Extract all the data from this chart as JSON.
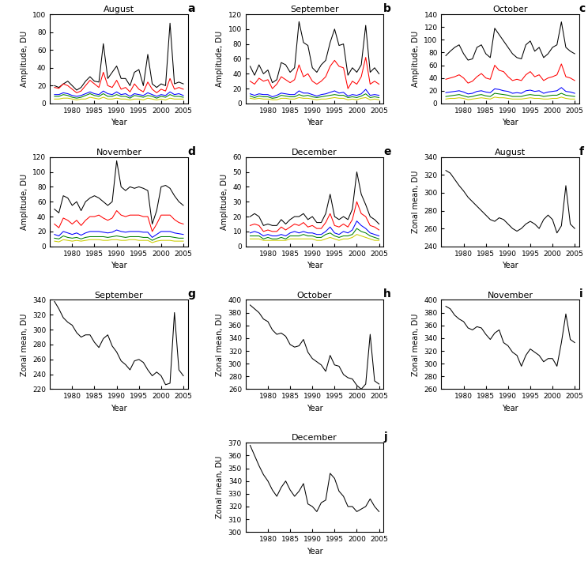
{
  "years": [
    1976,
    1977,
    1978,
    1979,
    1980,
    1981,
    1982,
    1983,
    1984,
    1985,
    1986,
    1987,
    1988,
    1989,
    1990,
    1991,
    1992,
    1993,
    1994,
    1995,
    1996,
    1997,
    1998,
    1999,
    2000,
    2001,
    2002,
    2003,
    2004,
    2005
  ],
  "amp_aug_wn1": [
    20,
    18,
    22,
    25,
    20,
    15,
    18,
    25,
    30,
    25,
    24,
    67,
    28,
    35,
    42,
    28,
    28,
    20,
    35,
    38,
    20,
    55,
    22,
    18,
    22,
    20,
    90,
    22,
    24,
    22
  ],
  "amp_aug_wn2": [
    18,
    17,
    22,
    20,
    16,
    12,
    14,
    20,
    26,
    22,
    18,
    35,
    20,
    18,
    26,
    16,
    18,
    13,
    22,
    16,
    13,
    24,
    16,
    12,
    16,
    14,
    28,
    16,
    18,
    16
  ],
  "amp_aug_wn3": [
    10,
    10,
    12,
    11,
    9,
    8,
    9,
    11,
    13,
    11,
    10,
    14,
    11,
    10,
    13,
    10,
    11,
    8,
    11,
    10,
    9,
    12,
    10,
    8,
    10,
    9,
    13,
    10,
    11,
    9
  ],
  "amp_aug_wn4": [
    8,
    8,
    10,
    9,
    7,
    6,
    7,
    9,
    11,
    9,
    8,
    11,
    8,
    8,
    10,
    8,
    8,
    6,
    9,
    8,
    7,
    9,
    8,
    6,
    8,
    7,
    10,
    8,
    8,
    7
  ],
  "amp_aug_wn5": [
    5,
    5,
    6,
    6,
    5,
    4,
    5,
    5,
    7,
    6,
    5,
    7,
    5,
    5,
    6,
    5,
    5,
    4,
    5,
    5,
    4,
    6,
    5,
    4,
    5,
    4,
    6,
    5,
    5,
    5
  ],
  "amp_sep_wn1": [
    50,
    38,
    52,
    40,
    45,
    28,
    32,
    55,
    52,
    42,
    48,
    110,
    82,
    78,
    48,
    42,
    52,
    58,
    82,
    100,
    78,
    80,
    38,
    48,
    42,
    52,
    105,
    42,
    48,
    40
  ],
  "amp_sep_wn2": [
    30,
    26,
    34,
    30,
    32,
    20,
    26,
    36,
    32,
    28,
    32,
    52,
    36,
    40,
    30,
    26,
    30,
    36,
    50,
    58,
    50,
    48,
    20,
    30,
    26,
    36,
    62,
    26,
    30,
    26
  ],
  "amp_sep_wn3": [
    13,
    11,
    13,
    12,
    12,
    9,
    11,
    14,
    13,
    12,
    12,
    17,
    14,
    14,
    12,
    10,
    12,
    13,
    15,
    17,
    14,
    15,
    10,
    12,
    11,
    13,
    19,
    11,
    12,
    11
  ],
  "amp_sep_wn4": [
    10,
    8,
    10,
    9,
    9,
    7,
    8,
    11,
    10,
    9,
    9,
    12,
    10,
    11,
    9,
    8,
    9,
    10,
    11,
    12,
    11,
    11,
    8,
    9,
    8,
    10,
    13,
    8,
    9,
    8
  ],
  "amp_sep_wn5": [
    7,
    6,
    7,
    6,
    6,
    5,
    5,
    7,
    7,
    6,
    6,
    8,
    7,
    7,
    6,
    5,
    6,
    6,
    7,
    8,
    7,
    7,
    5,
    6,
    5,
    7,
    8,
    5,
    6,
    5
  ],
  "amp_oct_wn1": [
    75,
    82,
    88,
    92,
    78,
    68,
    70,
    88,
    92,
    78,
    72,
    118,
    108,
    98,
    88,
    78,
    72,
    70,
    92,
    98,
    82,
    88,
    72,
    78,
    88,
    92,
    128,
    88,
    82,
    78
  ],
  "amp_oct_wn2": [
    38,
    40,
    42,
    45,
    40,
    32,
    35,
    42,
    47,
    40,
    38,
    60,
    52,
    50,
    42,
    36,
    38,
    36,
    45,
    50,
    42,
    45,
    36,
    40,
    42,
    45,
    62,
    42,
    40,
    36
  ],
  "amp_oct_wn3": [
    17,
    18,
    19,
    20,
    18,
    15,
    16,
    19,
    20,
    18,
    17,
    23,
    22,
    20,
    19,
    16,
    17,
    16,
    20,
    21,
    19,
    20,
    16,
    18,
    19,
    20,
    25,
    19,
    18,
    16
  ],
  "amp_oct_wn4": [
    11,
    12,
    13,
    14,
    12,
    10,
    11,
    13,
    14,
    12,
    11,
    16,
    15,
    14,
    13,
    11,
    11,
    11,
    13,
    14,
    13,
    13,
    11,
    12,
    13,
    13,
    16,
    13,
    12,
    11
  ],
  "amp_oct_wn5": [
    7,
    8,
    8,
    9,
    8,
    6,
    7,
    8,
    9,
    8,
    7,
    10,
    9,
    9,
    8,
    7,
    7,
    7,
    8,
    9,
    8,
    8,
    7,
    7,
    8,
    8,
    10,
    8,
    7,
    7
  ],
  "amp_nov_wn1": [
    50,
    45,
    68,
    65,
    55,
    60,
    48,
    60,
    65,
    68,
    65,
    60,
    55,
    60,
    115,
    80,
    75,
    80,
    78,
    80,
    78,
    75,
    30,
    48,
    80,
    82,
    78,
    68,
    60,
    55
  ],
  "amp_nov_wn2": [
    30,
    25,
    38,
    35,
    30,
    35,
    28,
    35,
    40,
    40,
    42,
    38,
    35,
    38,
    48,
    42,
    40,
    42,
    42,
    42,
    40,
    40,
    20,
    30,
    42,
    42,
    42,
    36,
    32,
    30
  ],
  "amp_nov_wn3": [
    16,
    14,
    20,
    18,
    16,
    18,
    15,
    18,
    20,
    20,
    20,
    19,
    18,
    19,
    22,
    20,
    19,
    20,
    20,
    20,
    19,
    19,
    12,
    16,
    20,
    20,
    20,
    18,
    17,
    16
  ],
  "amp_nov_wn4": [
    11,
    10,
    14,
    12,
    11,
    12,
    10,
    12,
    13,
    13,
    13,
    13,
    12,
    13,
    14,
    13,
    12,
    13,
    13,
    13,
    12,
    12,
    8,
    11,
    13,
    13,
    13,
    12,
    11,
    11
  ],
  "amp_nov_wn5": [
    7,
    6,
    9,
    8,
    7,
    8,
    7,
    8,
    9,
    9,
    9,
    8,
    8,
    9,
    9,
    8,
    8,
    9,
    9,
    8,
    8,
    8,
    5,
    7,
    8,
    8,
    8,
    7,
    7,
    7
  ],
  "amp_dec_wn1": [
    20,
    22,
    20,
    14,
    15,
    14,
    14,
    18,
    15,
    18,
    20,
    20,
    22,
    18,
    20,
    16,
    16,
    22,
    35,
    20,
    18,
    20,
    18,
    25,
    50,
    35,
    28,
    20,
    18,
    15
  ],
  "amp_dec_wn2": [
    14,
    15,
    14,
    10,
    11,
    10,
    10,
    13,
    11,
    13,
    15,
    14,
    16,
    13,
    14,
    12,
    12,
    16,
    22,
    14,
    13,
    15,
    13,
    18,
    30,
    22,
    20,
    14,
    13,
    11
  ],
  "amp_dec_wn3": [
    9,
    10,
    9,
    7,
    8,
    7,
    7,
    8,
    7,
    9,
    10,
    9,
    10,
    9,
    9,
    8,
    8,
    10,
    13,
    9,
    8,
    10,
    9,
    11,
    17,
    14,
    12,
    9,
    8,
    7
  ],
  "amp_dec_wn4": [
    7,
    7,
    7,
    5,
    6,
    5,
    5,
    6,
    5,
    7,
    7,
    7,
    8,
    7,
    7,
    6,
    6,
    8,
    9,
    7,
    6,
    7,
    7,
    8,
    12,
    10,
    9,
    7,
    6,
    5
  ],
  "amp_dec_wn5": [
    5,
    5,
    5,
    4,
    4,
    4,
    4,
    4,
    4,
    5,
    5,
    5,
    5,
    5,
    5,
    4,
    4,
    5,
    6,
    5,
    4,
    5,
    5,
    6,
    8,
    7,
    6,
    5,
    4,
    4
  ],
  "zm_aug": [
    325,
    322,
    315,
    308,
    302,
    295,
    290,
    285,
    280,
    275,
    270,
    268,
    272,
    270,
    265,
    260,
    257,
    260,
    265,
    268,
    265,
    260,
    270,
    275,
    270,
    255,
    263,
    308,
    265,
    260
  ],
  "zm_sep": [
    338,
    328,
    316,
    310,
    306,
    296,
    290,
    293,
    293,
    283,
    276,
    288,
    293,
    278,
    270,
    258,
    253,
    246,
    258,
    260,
    256,
    246,
    238,
    243,
    238,
    226,
    228,
    323,
    246,
    238
  ],
  "zm_oct": [
    392,
    386,
    380,
    370,
    366,
    353,
    346,
    348,
    343,
    330,
    326,
    328,
    338,
    318,
    308,
    303,
    298,
    288,
    313,
    298,
    296,
    283,
    278,
    276,
    266,
    260,
    268,
    346,
    273,
    268
  ],
  "zm_nov": [
    390,
    386,
    376,
    370,
    366,
    356,
    353,
    358,
    356,
    346,
    338,
    348,
    353,
    333,
    328,
    318,
    313,
    296,
    313,
    323,
    318,
    313,
    303,
    308,
    308,
    296,
    333,
    378,
    338,
    333
  ],
  "zm_dec": [
    368,
    360,
    352,
    345,
    340,
    333,
    328,
    335,
    340,
    333,
    328,
    332,
    338,
    322,
    320,
    316,
    323,
    325,
    346,
    342,
    332,
    328,
    320,
    320,
    316,
    318,
    320,
    326,
    320,
    316
  ],
  "colors_wn": [
    "black",
    "red",
    "blue",
    "green",
    "#cccc00"
  ],
  "ylabel_amp": "Amplitude, DU",
  "ylabel_zm": "Zonal mean, DU",
  "xlabel": "Year",
  "ylim_aug_amp": [
    0,
    100
  ],
  "ylim_sep_amp": [
    0,
    120
  ],
  "ylim_oct_amp": [
    0,
    140
  ],
  "ylim_nov_amp": [
    0,
    120
  ],
  "ylim_dec_amp": [
    0,
    60
  ],
  "ylim_aug_zm": [
    240,
    340
  ],
  "ylim_sep_zm": [
    220,
    340
  ],
  "ylim_oct_zm": [
    260,
    400
  ],
  "ylim_nov_zm": [
    260,
    400
  ],
  "ylim_dec_zm": [
    300,
    370
  ],
  "yticks_aug_amp": [
    0,
    20,
    40,
    60,
    80,
    100
  ],
  "yticks_sep_amp": [
    0,
    20,
    40,
    60,
    80,
    100,
    120
  ],
  "yticks_oct_amp": [
    0,
    20,
    40,
    60,
    80,
    100,
    120,
    140
  ],
  "yticks_nov_amp": [
    0,
    20,
    40,
    60,
    80,
    100,
    120
  ],
  "yticks_dec_amp": [
    0,
    10,
    20,
    30,
    40,
    50,
    60
  ],
  "yticks_aug_zm": [
    240,
    260,
    280,
    300,
    320,
    340
  ],
  "yticks_sep_zm": [
    220,
    240,
    260,
    280,
    300,
    320,
    340
  ],
  "yticks_oct_zm": [
    260,
    280,
    300,
    320,
    340,
    360,
    380,
    400
  ],
  "yticks_nov_zm": [
    260,
    280,
    300,
    320,
    340,
    360,
    380,
    400
  ],
  "yticks_dec_zm": [
    300,
    310,
    320,
    330,
    340,
    350,
    360,
    370
  ],
  "xlim": [
    1975,
    2006
  ],
  "xticks": [
    1980,
    1985,
    1990,
    1995,
    2000,
    2005
  ],
  "panel_labels": [
    "a",
    "b",
    "c",
    "d",
    "e",
    "f",
    "g",
    "h",
    "i",
    "j"
  ],
  "titles_amp": [
    "August",
    "September",
    "October",
    "November",
    "December"
  ],
  "titles_zm": [
    "August",
    "September",
    "October",
    "November",
    "December"
  ]
}
